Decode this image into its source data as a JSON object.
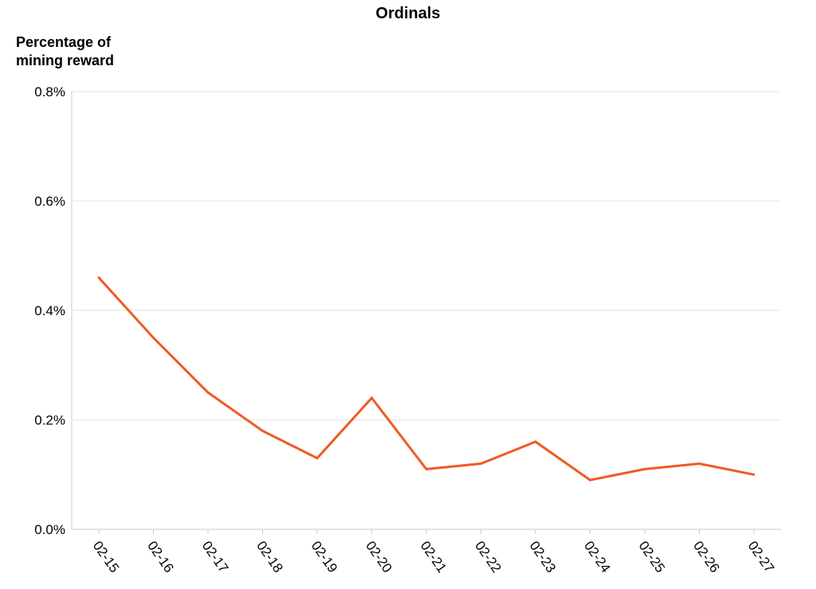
{
  "chart_data": {
    "type": "line",
    "title": "Ordinals",
    "ylabel": "Percentage of mining reward",
    "xlabel": "",
    "categories": [
      "02-15",
      "02-16",
      "02-17",
      "02-18",
      "02-19",
      "02-20",
      "02-21",
      "02-22",
      "02-23",
      "02-24",
      "02-25",
      "02-26",
      "02-27"
    ],
    "series": [
      {
        "values": [
          0.46,
          0.35,
          0.25,
          0.18,
          0.13,
          0.24,
          0.11,
          0.12,
          0.16,
          0.09,
          0.11,
          0.12,
          0.1
        ],
        "color": "#f05a22"
      }
    ],
    "ylim": [
      0,
      0.8
    ],
    "y_ticks": [
      0.0,
      0.2,
      0.4,
      0.6,
      0.8
    ],
    "y_tick_labels": [
      "0.0%",
      "0.2%",
      "0.4%",
      "0.6%",
      "0.8%"
    ],
    "grid": true,
    "legend": "none"
  }
}
